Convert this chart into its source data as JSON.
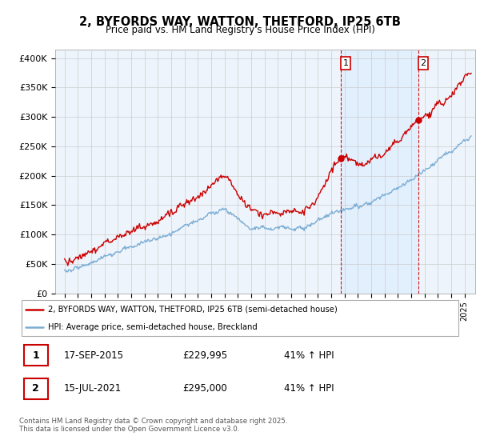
{
  "title": "2, BYFORDS WAY, WATTON, THETFORD, IP25 6TB",
  "subtitle": "Price paid vs. HM Land Registry's House Price Index (HPI)",
  "ylabel_ticks": [
    "£0",
    "£50K",
    "£100K",
    "£150K",
    "£200K",
    "£250K",
    "£300K",
    "£350K",
    "£400K"
  ],
  "ytick_values": [
    0,
    50000,
    100000,
    150000,
    200000,
    250000,
    300000,
    350000,
    400000
  ],
  "ylim": [
    0,
    415000
  ],
  "sale1_date": "17-SEP-2015",
  "sale1_price": 229995,
  "sale1_hpi": "41% ↑ HPI",
  "sale1_label": "1",
  "sale2_date": "15-JUL-2021",
  "sale2_price": 295000,
  "sale2_hpi": "41% ↑ HPI",
  "sale2_label": "2",
  "sale1_x": 2015.72,
  "sale2_x": 2021.54,
  "red_color": "#cc0000",
  "blue_color": "#7aadd4",
  "shade_color": "#ddeeff",
  "vline_color": "#cc0000",
  "grid_color": "#cccccc",
  "legend_label_red": "2, BYFORDS WAY, WATTON, THETFORD, IP25 6TB (semi-detached house)",
  "legend_label_blue": "HPI: Average price, semi-detached house, Breckland",
  "footnote": "Contains HM Land Registry data © Crown copyright and database right 2025.\nThis data is licensed under the Open Government Licence v3.0.",
  "background_color": "#eef4fb",
  "fig_bg": "#ffffff"
}
